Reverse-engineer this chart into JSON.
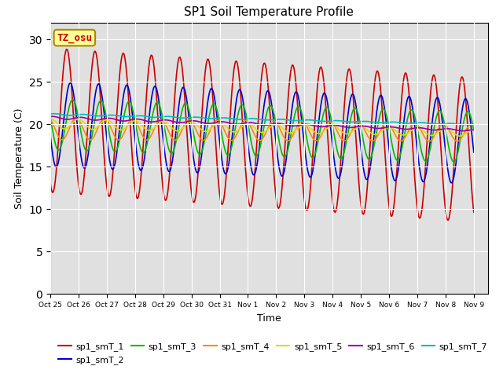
{
  "title": "SP1 Soil Temperature Profile",
  "xlabel": "Time",
  "ylabel": "Soil Temperature (C)",
  "ylim": [
    0,
    32
  ],
  "yticks": [
    0,
    5,
    10,
    15,
    20,
    25,
    30
  ],
  "annotation_text": "TZ_osu",
  "annotation_color": "#cc0000",
  "annotation_bg": "#ffff99",
  "annotation_border": "#aa8800",
  "series_colors": [
    "#cc0000",
    "#0000cc",
    "#00bb00",
    "#ff8800",
    "#dddd00",
    "#9900aa",
    "#00bbbb"
  ],
  "series_names": [
    "sp1_smT_1",
    "sp1_smT_2",
    "sp1_smT_3",
    "sp1_smT_4",
    "sp1_smT_5",
    "sp1_smT_6",
    "sp1_smT_7"
  ],
  "bg_color": "#e0e0e0",
  "tick_labels": [
    "Oct 25",
    "Oct 26",
    "Oct 27",
    "Oct 28",
    "Oct 29",
    "Oct 30",
    "Oct 31",
    "Nov 1",
    "Nov 2",
    "Nov 3",
    "Nov 4",
    "Nov 5",
    "Nov 6",
    "Nov 7",
    "Nov 8",
    "Nov 9"
  ]
}
